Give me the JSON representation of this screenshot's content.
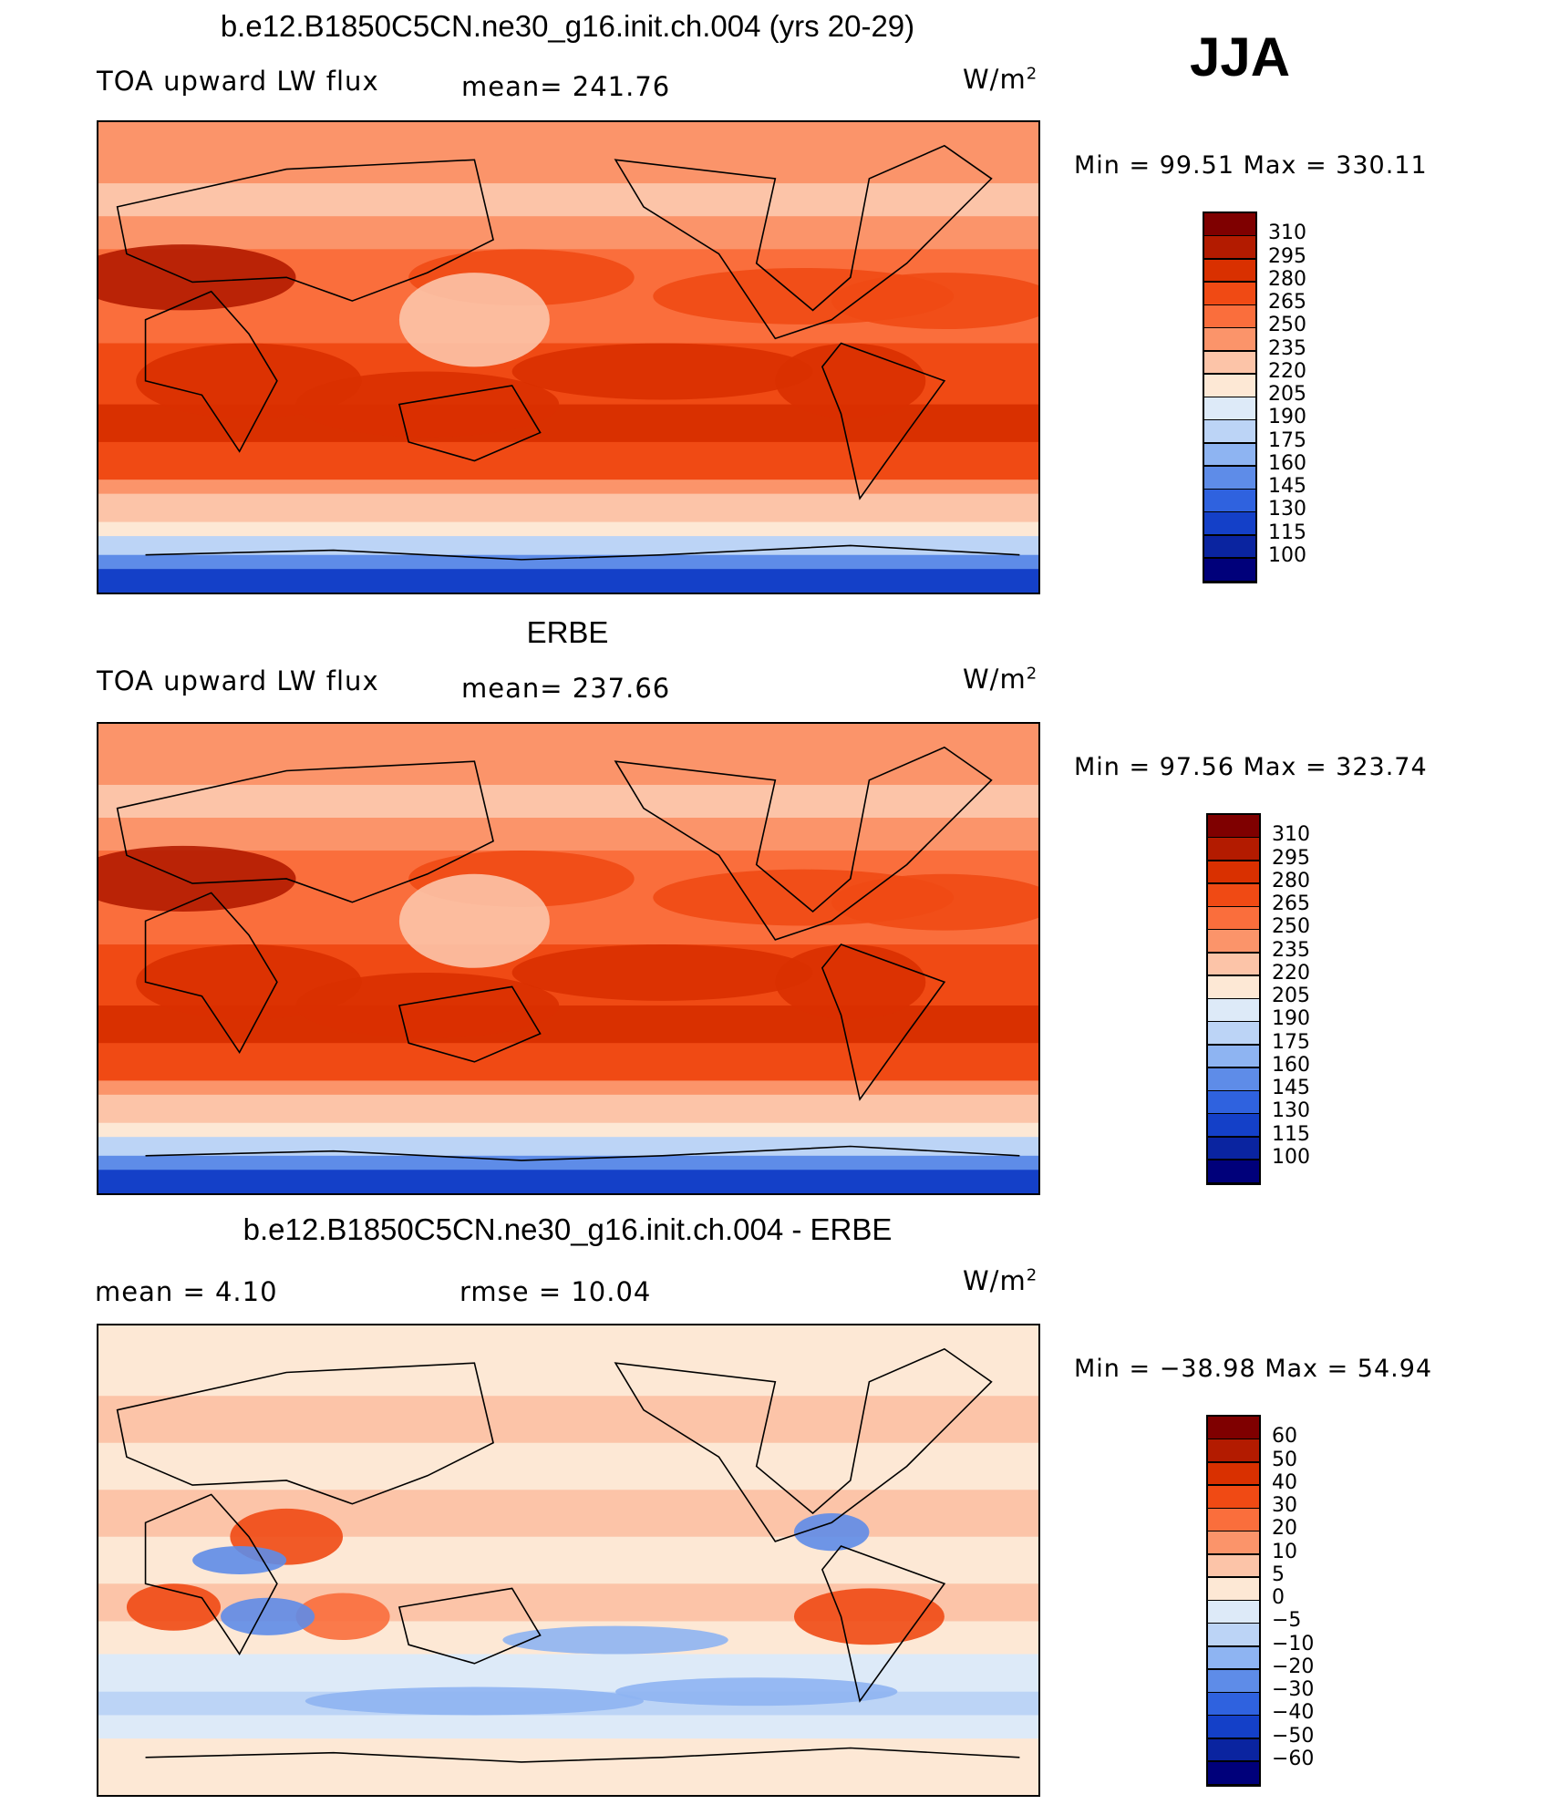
{
  "season": "JJA",
  "panels": [
    {
      "id": "model",
      "title": "b.e12.B1850C5CN.ne30_g16.init.ch.004 (yrs 20-29)",
      "left_label": "TOA upward LW flux",
      "center_label": "mean= 241.76",
      "units": "W/m",
      "units_sup": "2",
      "minmax": "Min =   99.51  Max  =  330.11",
      "map_icon": "world-map-pacific-centered",
      "colorbar": {
        "levels": [
          "310",
          "295",
          "280",
          "265",
          "250",
          "235",
          "220",
          "205",
          "190",
          "175",
          "160",
          "145",
          "130",
          "115",
          "100"
        ],
        "colors": [
          "#7f0000",
          "#b31b00",
          "#d93000",
          "#f04a14",
          "#fa6e3c",
          "#fb946a",
          "#fcc4a8",
          "#fde8d5",
          "#ddeaf8",
          "#bcd4f6",
          "#8eb4f2",
          "#5e8ce8",
          "#2f62df",
          "#1440c8",
          "#0a24a0",
          "#00007a"
        ]
      }
    },
    {
      "id": "obs",
      "title": "ERBE",
      "left_label": "TOA upward LW flux",
      "center_label": "mean= 237.66",
      "units": "W/m",
      "units_sup": "2",
      "minmax": "Min =   97.56  Max  =  323.74",
      "map_icon": "world-map-pacific-centered",
      "colorbar": {
        "levels": [
          "310",
          "295",
          "280",
          "265",
          "250",
          "235",
          "220",
          "205",
          "190",
          "175",
          "160",
          "145",
          "130",
          "115",
          "100"
        ],
        "colors": [
          "#7f0000",
          "#b31b00",
          "#d93000",
          "#f04a14",
          "#fa6e3c",
          "#fb946a",
          "#fcc4a8",
          "#fde8d5",
          "#ddeaf8",
          "#bcd4f6",
          "#8eb4f2",
          "#5e8ce8",
          "#2f62df",
          "#1440c8",
          "#0a24a0",
          "#00007a"
        ]
      }
    },
    {
      "id": "diff",
      "title": "b.e12.B1850C5CN.ne30_g16.init.ch.004 - ERBE",
      "left_label": "mean =     4.10",
      "center_label": "rmse =    10.04",
      "units": "W/m",
      "units_sup": "2",
      "minmax": "Min  =  −38.98  Max  =    54.94",
      "map_icon": "world-map-pacific-centered",
      "colorbar": {
        "levels": [
          "60",
          "50",
          "40",
          "30",
          "20",
          "10",
          "5",
          "0",
          "−5",
          "−10",
          "−20",
          "−30",
          "−40",
          "−50",
          "−60"
        ],
        "colors": [
          "#7f0000",
          "#b31b00",
          "#d93000",
          "#f04a14",
          "#fa6e3c",
          "#fb946a",
          "#fcc4a8",
          "#fde8d5",
          "#ddeaf8",
          "#bcd4f6",
          "#8eb4f2",
          "#5e8ce8",
          "#2f62df",
          "#1440c8",
          "#0a24a0",
          "#00007a"
        ]
      }
    }
  ]
}
